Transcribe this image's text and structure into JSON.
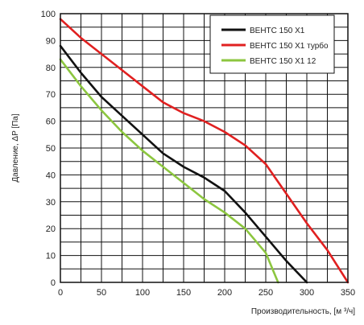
{
  "chart_data": {
    "type": "line",
    "title": "",
    "xlabel": "Производительность, [м ³/ч]",
    "ylabel": "Давление, ΔP [Па]",
    "xlim": [
      0,
      350
    ],
    "ylim": [
      0,
      100
    ],
    "x_ticks": [
      0,
      50,
      100,
      150,
      200,
      250,
      300,
      350
    ],
    "y_ticks": [
      0,
      10,
      20,
      30,
      40,
      50,
      60,
      70,
      80,
      90,
      100
    ],
    "grid": true,
    "legend_position": "top-right",
    "series": [
      {
        "name": "ВЕНТС 150 Х1",
        "color": "#111111",
        "x": [
          0,
          25,
          50,
          75,
          100,
          125,
          150,
          175,
          200,
          225,
          250,
          275,
          300
        ],
        "y": [
          88,
          78,
          69,
          62,
          55,
          48,
          43,
          39,
          34,
          26,
          17,
          8,
          0
        ]
      },
      {
        "name": "ВЕНТС 150 Х1 турбо",
        "color": "#e02020",
        "x": [
          0,
          25,
          50,
          75,
          100,
          125,
          150,
          175,
          200,
          225,
          250,
          275,
          300,
          325,
          350
        ],
        "y": [
          98,
          91,
          85,
          79,
          73,
          67,
          63,
          60,
          56,
          51,
          44,
          33,
          22,
          12,
          0
        ]
      },
      {
        "name": "ВЕНТС 150 Х1 12",
        "color": "#8cc63f",
        "x": [
          0,
          25,
          50,
          75,
          100,
          125,
          150,
          175,
          200,
          225,
          250,
          265
        ],
        "y": [
          83,
          73,
          64,
          56,
          49,
          43,
          37,
          31,
          26,
          20,
          11,
          0
        ]
      }
    ]
  }
}
